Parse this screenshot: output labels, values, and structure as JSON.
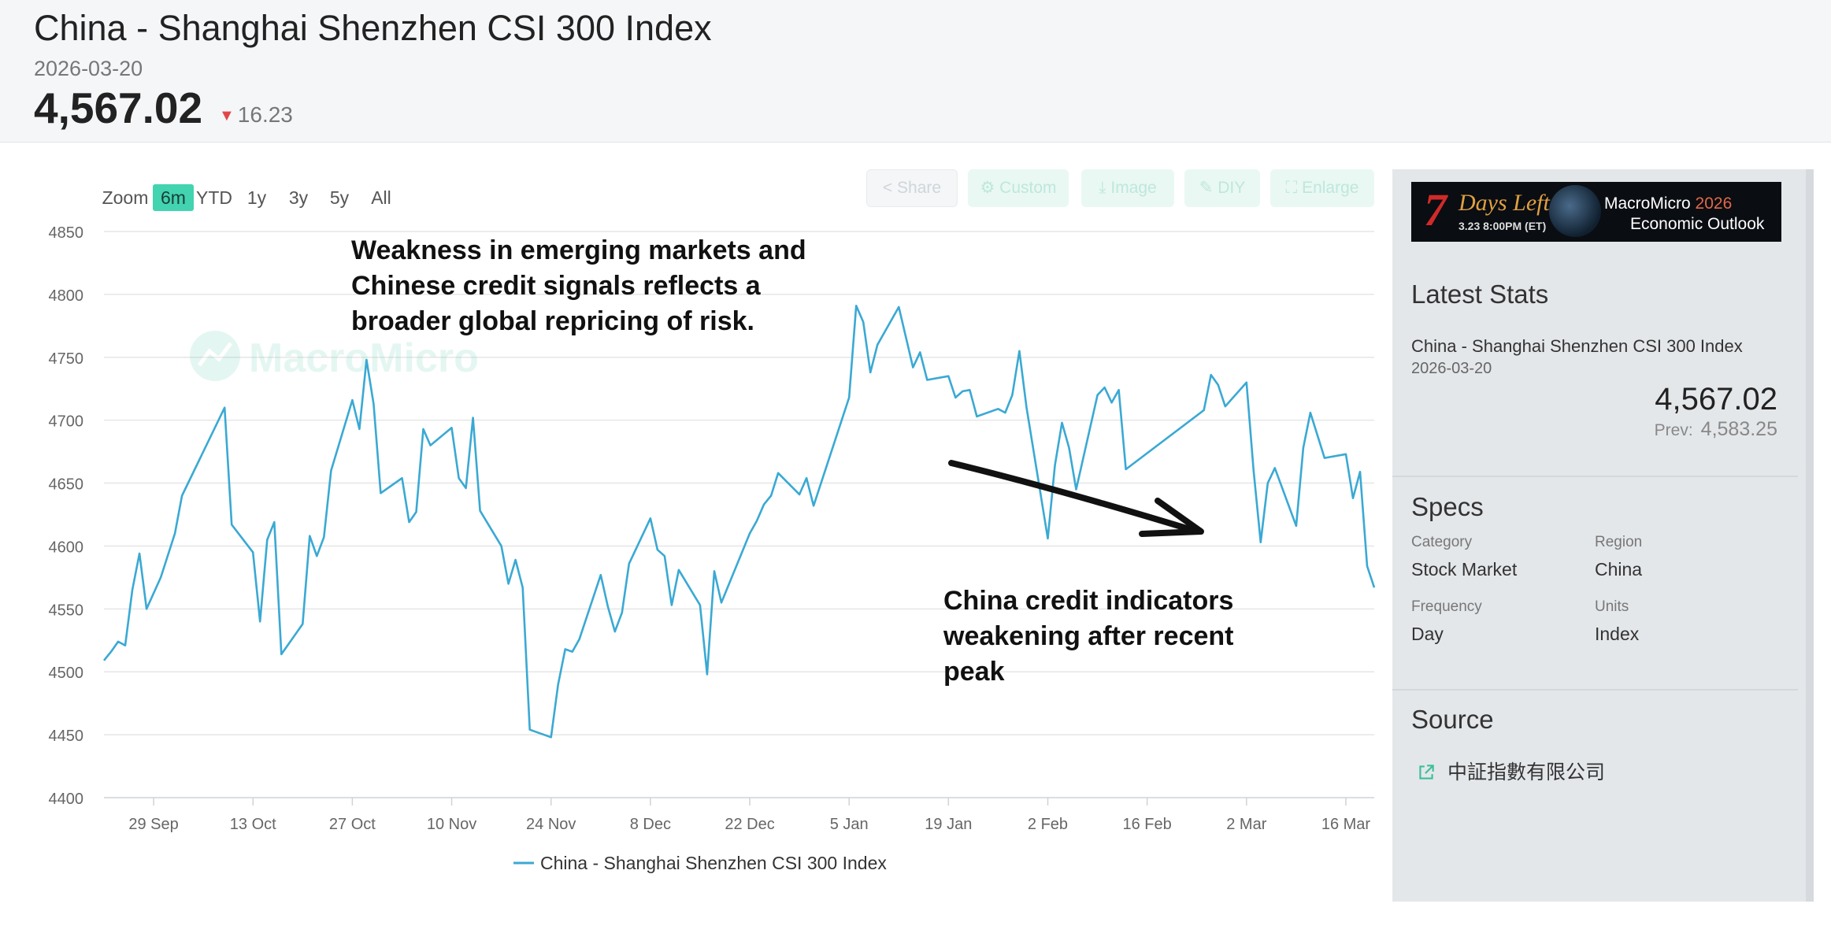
{
  "header": {
    "title": "China - Shanghai Shenzhen CSI 300 Index",
    "date": "2026-03-20",
    "price": "4,567.02",
    "change": "16.23",
    "change_direction": "down",
    "down_color": "#e04848"
  },
  "zoom": {
    "label": "Zoom",
    "options": [
      "6m",
      "YTD",
      "1y",
      "3y",
      "5y",
      "All"
    ],
    "active": "6m"
  },
  "toolbar": {
    "share": "Share",
    "custom": "Custom",
    "image": "Image",
    "diy": "DIY",
    "enlarge": "Enlarge"
  },
  "watermark": "MacroMicro",
  "annotations": {
    "top": "Weakness in emerging markets and\nChinese credit signals reflects a\nbroader global repricing of risk.",
    "bottom": "China credit indicators\nweakening after recent\npeak"
  },
  "chart_data": {
    "type": "line",
    "title": "",
    "xlabel": "",
    "ylabel": "",
    "ylim": [
      4400,
      4850
    ],
    "yticks": [
      4400,
      4450,
      4500,
      4550,
      4600,
      4650,
      4700,
      4750,
      4800,
      4850
    ],
    "xlim": [
      "2025-09-22",
      "2026-03-20"
    ],
    "xticks": [
      {
        "date": "2025-09-29",
        "label": "29 Sep"
      },
      {
        "date": "2025-10-13",
        "label": "13 Oct"
      },
      {
        "date": "2025-10-27",
        "label": "27 Oct"
      },
      {
        "date": "2025-11-10",
        "label": "10 Nov"
      },
      {
        "date": "2025-11-24",
        "label": "24 Nov"
      },
      {
        "date": "2025-12-08",
        "label": "8 Dec"
      },
      {
        "date": "2025-12-22",
        "label": "22 Dec"
      },
      {
        "date": "2026-01-05",
        "label": "5 Jan"
      },
      {
        "date": "2026-01-19",
        "label": "19 Jan"
      },
      {
        "date": "2026-02-02",
        "label": "2 Feb"
      },
      {
        "date": "2026-02-16",
        "label": "16 Feb"
      },
      {
        "date": "2026-03-02",
        "label": "2 Mar"
      },
      {
        "date": "2026-03-16",
        "label": "16 Mar"
      }
    ],
    "grid": true,
    "legend": "bottom-center",
    "color": "#3aa9d3",
    "series": [
      {
        "name": "China - Shanghai Shenzhen CSI 300 Index",
        "points": [
          [
            "2025-09-22",
            4509
          ],
          [
            "2025-09-23",
            4516
          ],
          [
            "2025-09-24",
            4524
          ],
          [
            "2025-09-25",
            4521
          ],
          [
            "2025-09-26",
            4565
          ],
          [
            "2025-09-27",
            4594
          ],
          [
            "2025-09-28",
            4550
          ],
          [
            "2025-09-30",
            4575
          ],
          [
            "2025-10-02",
            4610
          ],
          [
            "2025-10-03",
            4640
          ],
          [
            "2025-10-09",
            4710
          ],
          [
            "2025-10-10",
            4617
          ],
          [
            "2025-10-13",
            4595
          ],
          [
            "2025-10-14",
            4540
          ],
          [
            "2025-10-15",
            4605
          ],
          [
            "2025-10-16",
            4619
          ],
          [
            "2025-10-17",
            4514
          ],
          [
            "2025-10-20",
            4538
          ],
          [
            "2025-10-21",
            4608
          ],
          [
            "2025-10-22",
            4592
          ],
          [
            "2025-10-23",
            4607
          ],
          [
            "2025-10-24",
            4660
          ],
          [
            "2025-10-27",
            4716
          ],
          [
            "2025-10-28",
            4693
          ],
          [
            "2025-10-29",
            4748
          ],
          [
            "2025-10-30",
            4713
          ],
          [
            "2025-10-31",
            4642
          ],
          [
            "2025-11-03",
            4654
          ],
          [
            "2025-11-04",
            4619
          ],
          [
            "2025-11-05",
            4627
          ],
          [
            "2025-11-06",
            4693
          ],
          [
            "2025-11-07",
            4680
          ],
          [
            "2025-11-10",
            4694
          ],
          [
            "2025-11-11",
            4654
          ],
          [
            "2025-11-12",
            4646
          ],
          [
            "2025-11-13",
            4702
          ],
          [
            "2025-11-14",
            4628
          ],
          [
            "2025-11-17",
            4600
          ],
          [
            "2025-11-18",
            4570
          ],
          [
            "2025-11-19",
            4589
          ],
          [
            "2025-11-20",
            4567
          ],
          [
            "2025-11-21",
            4454
          ],
          [
            "2025-11-24",
            4448
          ],
          [
            "2025-11-25",
            4490
          ],
          [
            "2025-11-26",
            4518
          ],
          [
            "2025-11-27",
            4516
          ],
          [
            "2025-11-28",
            4526
          ],
          [
            "2025-12-01",
            4577
          ],
          [
            "2025-12-02",
            4552
          ],
          [
            "2025-12-03",
            4532
          ],
          [
            "2025-12-04",
            4547
          ],
          [
            "2025-12-05",
            4586
          ],
          [
            "2025-12-08",
            4622
          ],
          [
            "2025-12-09",
            4597
          ],
          [
            "2025-12-10",
            4592
          ],
          [
            "2025-12-11",
            4553
          ],
          [
            "2025-12-12",
            4581
          ],
          [
            "2025-12-15",
            4553
          ],
          [
            "2025-12-16",
            4498
          ],
          [
            "2025-12-17",
            4580
          ],
          [
            "2025-12-18",
            4555
          ],
          [
            "2025-12-22",
            4610
          ],
          [
            "2025-12-23",
            4620
          ],
          [
            "2025-12-24",
            4633
          ],
          [
            "2025-12-25",
            4640
          ],
          [
            "2025-12-26",
            4658
          ],
          [
            "2025-12-29",
            4641
          ],
          [
            "2025-12-30",
            4654
          ],
          [
            "2025-12-31",
            4632
          ],
          [
            "2026-01-05",
            4718
          ],
          [
            "2026-01-06",
            4791
          ],
          [
            "2026-01-07",
            4778
          ],
          [
            "2026-01-08",
            4738
          ],
          [
            "2026-01-09",
            4760
          ],
          [
            "2026-01-12",
            4790
          ],
          [
            "2026-01-13",
            4766
          ],
          [
            "2026-01-14",
            4742
          ],
          [
            "2026-01-15",
            4754
          ],
          [
            "2026-01-16",
            4732
          ],
          [
            "2026-01-19",
            4735
          ],
          [
            "2026-01-20",
            4718
          ],
          [
            "2026-01-21",
            4723
          ],
          [
            "2026-01-22",
            4724
          ],
          [
            "2026-01-23",
            4703
          ],
          [
            "2026-01-26",
            4709
          ],
          [
            "2026-01-27",
            4706
          ],
          [
            "2026-01-28",
            4720
          ],
          [
            "2026-01-29",
            4755
          ],
          [
            "2026-01-30",
            4710
          ],
          [
            "2026-02-02",
            4606
          ],
          [
            "2026-02-03",
            4664
          ],
          [
            "2026-02-04",
            4698
          ],
          [
            "2026-02-05",
            4678
          ],
          [
            "2026-02-06",
            4645
          ],
          [
            "2026-02-09",
            4720
          ],
          [
            "2026-02-10",
            4726
          ],
          [
            "2026-02-11",
            4714
          ],
          [
            "2026-02-12",
            4724
          ],
          [
            "2026-02-13",
            4661
          ],
          [
            "2026-02-24",
            4708
          ],
          [
            "2026-02-25",
            4736
          ],
          [
            "2026-02-26",
            4728
          ],
          [
            "2026-02-27",
            4711
          ],
          [
            "2026-03-02",
            4730
          ],
          [
            "2026-03-03",
            4660
          ],
          [
            "2026-03-04",
            4603
          ],
          [
            "2026-03-05",
            4650
          ],
          [
            "2026-03-06",
            4662
          ],
          [
            "2026-03-09",
            4616
          ],
          [
            "2026-03-10",
            4678
          ],
          [
            "2026-03-11",
            4706
          ],
          [
            "2026-03-12",
            4688
          ],
          [
            "2026-03-13",
            4670
          ],
          [
            "2026-03-16",
            4673
          ],
          [
            "2026-03-17",
            4638
          ],
          [
            "2026-03-18",
            4659
          ],
          [
            "2026-03-19",
            4584
          ],
          [
            "2026-03-20",
            4567
          ]
        ]
      }
    ]
  },
  "banner": {
    "big_number": "7",
    "days_text": "Days Left",
    "when": "3.23 8:00PM (ET)",
    "brand": "MacroMicro",
    "year": "2026",
    "subtitle": "Economic Outlook"
  },
  "latest_stats": {
    "title": "Latest Stats",
    "name": "China - Shanghai Shenzhen CSI 300 Index",
    "date": "2026-03-20",
    "value": "4,567.02",
    "prev_label": "Prev:",
    "prev_value": "4,583.25"
  },
  "specs": {
    "title": "Specs",
    "category_label": "Category",
    "category": "Stock Market",
    "region_label": "Region",
    "region": "China",
    "frequency_label": "Frequency",
    "frequency": "Day",
    "units_label": "Units",
    "units": "Index"
  },
  "source": {
    "title": "Source",
    "name": "中証指數有限公司"
  }
}
